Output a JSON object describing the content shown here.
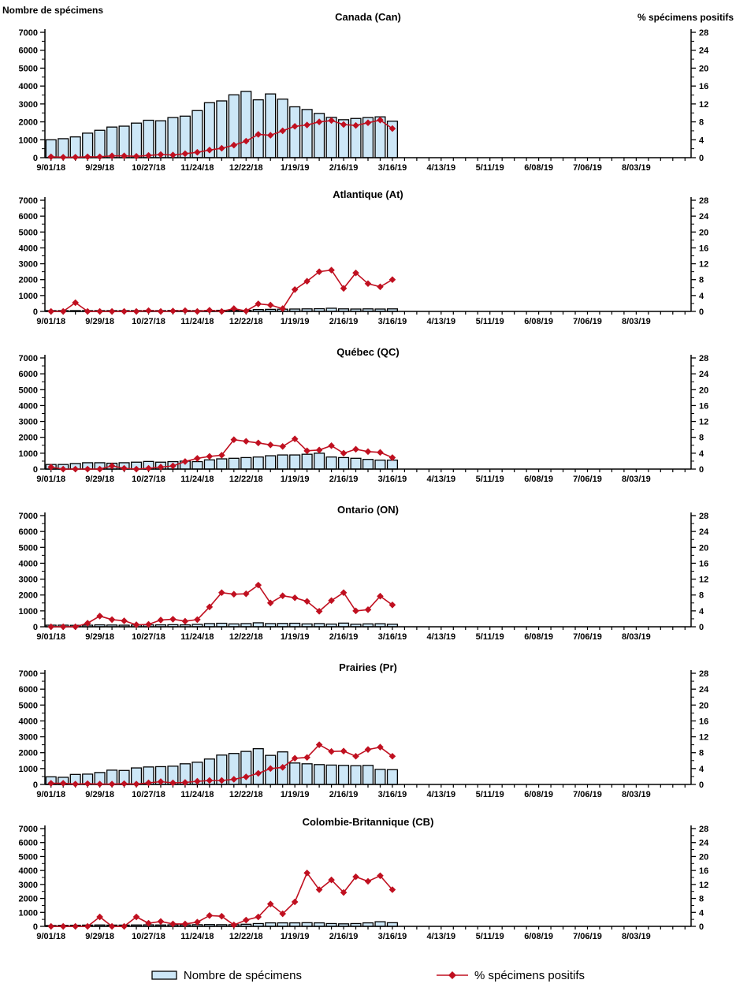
{
  "header": {
    "left_axis_title": "Nombre de spécimens",
    "right_axis_title": "% spécimens positifs"
  },
  "legend": {
    "bars_label": "Nombre de spécimens",
    "line_label": "% spécimens positifs"
  },
  "colors": {
    "bar_fill": "#cde7f7",
    "bar_stroke": "#000000",
    "line": "#c01020",
    "axis": "#000000",
    "text": "#000000"
  },
  "axes": {
    "left_ticks": [
      0,
      1000,
      2000,
      3000,
      4000,
      5000,
      6000,
      7000
    ],
    "right_ticks": [
      0,
      4,
      8,
      12,
      16,
      20,
      24,
      28
    ],
    "x_tick_labels": [
      "9/01/18",
      "9/29/18",
      "10/27/18",
      "11/24/18",
      "12/22/18",
      "1/19/19",
      "2/16/19",
      "3/16/19",
      "4/13/19",
      "5/11/19",
      "6/08/19",
      "7/06/19",
      "8/03/19"
    ],
    "x_label_every_n_weeks": 4,
    "total_week_slots": 53
  },
  "chart_data": {
    "type": "bar+line",
    "categories": [
      "9/01/18",
      "9/08/18",
      "9/15/18",
      "9/22/18",
      "9/29/18",
      "10/06/18",
      "10/13/18",
      "10/20/18",
      "10/27/18",
      "11/03/18",
      "11/10/18",
      "11/17/18",
      "11/24/18",
      "12/01/18",
      "12/08/18",
      "12/15/18",
      "12/22/18",
      "12/29/18",
      "1/05/19",
      "1/12/19",
      "1/19/19",
      "1/26/19",
      "2/02/19",
      "2/09/19",
      "2/16/19",
      "2/23/19",
      "3/02/19",
      "3/09/19",
      "3/16/19"
    ],
    "ylabel_left": "Nombre de spécimens",
    "ylabel_right": "% spécimens positifs",
    "ylim_left": [
      0,
      7000
    ],
    "ylim_right": [
      0,
      28
    ],
    "legend_position": "bottom",
    "grid": false,
    "panels": [
      {
        "title": "Canada (Can)",
        "series": [
          {
            "name": "Nombre de spécimens",
            "axis": "left",
            "values": [
              1000,
              1060,
              1160,
              1370,
              1530,
              1710,
              1760,
              1930,
              2090,
              2060,
              2240,
              2320,
              2630,
              3070,
              3170,
              3510,
              3700,
              3230,
              3560,
              3270,
              2840,
              2690,
              2470,
              2250,
              2120,
              2190,
              2240,
              2280,
              2040
            ]
          },
          {
            "name": "% spécimens positifs",
            "axis": "right",
            "values": [
              0.2,
              0.1,
              0.1,
              0.2,
              0.2,
              0.4,
              0.4,
              0.3,
              0.5,
              0.7,
              0.6,
              0.9,
              1.2,
              1.7,
              2.1,
              2.8,
              3.7,
              5.2,
              5.0,
              6.0,
              7.0,
              7.3,
              8.0,
              8.3,
              7.4,
              7.2,
              7.8,
              8.4,
              6.5
            ]
          }
        ]
      },
      {
        "title": "Atlantique (At)",
        "series": [
          {
            "name": "Nombre de spécimens",
            "axis": "left",
            "values": [
              30,
              40,
              50,
              40,
              50,
              50,
              40,
              50,
              60,
              50,
              60,
              60,
              50,
              60,
              70,
              80,
              70,
              120,
              130,
              140,
              150,
              160,
              170,
              200,
              160,
              150,
              160,
              150,
              160
            ]
          },
          {
            "name": "% spécimens positifs",
            "axis": "right",
            "values": [
              0,
              0,
              2.2,
              0,
              0,
              0,
              0,
              0,
              0.2,
              0,
              0.1,
              0.2,
              0,
              0.3,
              0,
              0.7,
              0.1,
              1.9,
              1.6,
              0.7,
              5.5,
              7.6,
              10.0,
              10.4,
              5.8,
              9.7,
              7.0,
              6.2,
              8.0
            ]
          }
        ]
      },
      {
        "title": "Québec (QC)",
        "series": [
          {
            "name": "Nombre de spécimens",
            "axis": "left",
            "values": [
              290,
              290,
              350,
              400,
              400,
              370,
              400,
              435,
              480,
              435,
              470,
              500,
              470,
              580,
              645,
              680,
              725,
              760,
              840,
              890,
              890,
              935,
              1000,
              760,
              725,
              680,
              610,
              565,
              565
            ]
          },
          {
            "name": "% spécimens positifs",
            "axis": "right",
            "values": [
              0.5,
              0,
              0,
              0,
              0,
              0.8,
              0.2,
              0,
              0.2,
              0.5,
              0.8,
              1.9,
              2.7,
              3.2,
              3.5,
              7.4,
              7.0,
              6.6,
              6.1,
              5.7,
              7.6,
              4.6,
              4.8,
              5.9,
              4.0,
              5.0,
              4.4,
              4.2,
              2.9
            ]
          }
        ]
      },
      {
        "title": "Ontario (ON)",
        "series": [
          {
            "name": "Nombre de spécimens",
            "axis": "left",
            "values": [
              100,
              100,
              90,
              100,
              120,
              110,
              100,
              110,
              120,
              120,
              130,
              120,
              150,
              200,
              220,
              180,
              200,
              250,
              200,
              210,
              220,
              180,
              200,
              170,
              230,
              160,
              180,
              190,
              160
            ]
          },
          {
            "name": "% spécimens positifs",
            "axis": "right",
            "values": [
              0,
              0,
              0,
              0.9,
              2.7,
              1.8,
              1.5,
              0.5,
              0.6,
              1.7,
              1.9,
              1.4,
              1.8,
              5.0,
              8.6,
              8.2,
              8.3,
              10.5,
              6.0,
              7.8,
              7.3,
              6.4,
              3.9,
              6.6,
              8.6,
              4.0,
              4.3,
              7.7,
              5.5
            ]
          }
        ]
      },
      {
        "title": "Prairies (Pr)",
        "series": [
          {
            "name": "Nombre de spécimens",
            "axis": "left",
            "values": [
              480,
              450,
              630,
              650,
              750,
              900,
              880,
              1040,
              1100,
              1120,
              1150,
              1300,
              1400,
              1600,
              1850,
              1950,
              2080,
              2250,
              1830,
              2050,
              1350,
              1300,
              1250,
              1220,
              1200,
              1180,
              1200,
              950,
              930
            ]
          },
          {
            "name": "% spécimens positifs",
            "axis": "right",
            "values": [
              0.3,
              0.3,
              0.1,
              0.2,
              0.1,
              0.1,
              0.2,
              0.1,
              0.4,
              0.7,
              0.4,
              0.5,
              0.8,
              1.0,
              1.0,
              1.3,
              1.9,
              2.8,
              4.0,
              4.3,
              6.6,
              6.8,
              10.0,
              8.3,
              8.4,
              7.1,
              8.8,
              9.4,
              7.1
            ]
          }
        ]
      },
      {
        "title": "Colombie-Britannique (CB)",
        "series": [
          {
            "name": "Nombre de spécimens",
            "axis": "left",
            "values": [
              60,
              70,
              80,
              90,
              100,
              90,
              90,
              100,
              110,
              100,
              110,
              110,
              120,
              130,
              120,
              120,
              150,
              200,
              250,
              250,
              250,
              260,
              250,
              200,
              180,
              200,
              250,
              330,
              260
            ]
          },
          {
            "name": "% spécimens positifs",
            "axis": "right",
            "values": [
              0,
              0,
              0,
              0,
              2.7,
              0,
              0,
              2.7,
              0.9,
              1.4,
              0.7,
              0.7,
              1.2,
              3.1,
              2.9,
              0.4,
              1.8,
              2.7,
              6.4,
              3.6,
              7.0,
              15.3,
              10.5,
              13.3,
              9.7,
              14.2,
              12.9,
              14.5,
              10.5
            ]
          }
        ]
      }
    ]
  }
}
